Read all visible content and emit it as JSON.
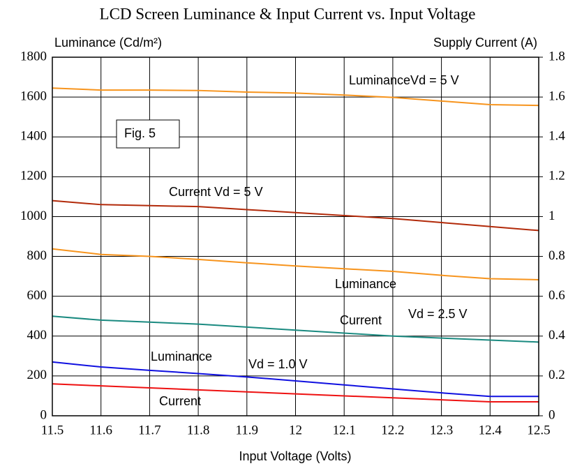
{
  "chart_data": {
    "type": "line",
    "title": "LCD Screen Luminance & Input Current vs. Input Voltage",
    "x_label": "Input Voltage (Volts)",
    "y_label": "Luminance (Cd/m²)",
    "y2_label": "Supply Current (A)",
    "x": [
      11.5,
      11.6,
      11.7,
      11.8,
      11.9,
      12,
      12.1,
      12.2,
      12.3,
      12.4,
      12.5
    ],
    "xlim": [
      11.5,
      12.5
    ],
    "xticks": [
      11.5,
      11.6,
      11.7,
      11.8,
      11.9,
      12,
      12.1,
      12.2,
      12.3,
      12.4,
      12.5
    ],
    "ylim": [
      0,
      1800
    ],
    "yticks": [
      0,
      200,
      400,
      600,
      800,
      1000,
      1200,
      1400,
      1600,
      1800
    ],
    "y2lim": [
      0,
      1.8
    ],
    "y2ticks": [
      0,
      0.2,
      0.4,
      0.6,
      0.8,
      1,
      1.2,
      1.4,
      1.6,
      1.8
    ],
    "grid": true,
    "annotations": [
      "LuminanceVd = 5 V",
      "Current Vd = 5 V",
      "Luminance",
      "Vd = 2.5 V",
      "Current",
      "Luminance",
      "Vd = 1.0 V",
      "Current",
      "Fig. 5"
    ],
    "series": [
      {
        "color": "#f7941d",
        "values": [
          1645,
          1635,
          1635,
          1633,
          1625,
          1620,
          1610,
          1598,
          1580,
          1562,
          1558
        ]
      },
      {
        "color": "#b22a0a",
        "axis": "y2",
        "values": [
          1.08,
          1.06,
          1.055,
          1.05,
          1.035,
          1.02,
          1.005,
          0.99,
          0.97,
          0.95,
          0.93
        ]
      },
      {
        "color": "#f7941d",
        "values": [
          838,
          810,
          800,
          785,
          768,
          752,
          738,
          725,
          705,
          688,
          683
        ]
      },
      {
        "color": "#1a8a80",
        "axis": "y2",
        "values": [
          0.5,
          0.48,
          0.47,
          0.46,
          0.445,
          0.43,
          0.415,
          0.4,
          0.39,
          0.38,
          0.37
        ]
      },
      {
        "color": "#1010e0",
        "values": [
          270,
          245,
          228,
          212,
          195,
          175,
          155,
          135,
          115,
          97,
          97
        ]
      },
      {
        "color": "#ee1111",
        "axis": "y2",
        "values": [
          0.16,
          0.15,
          0.14,
          0.13,
          0.12,
          0.11,
          0.1,
          0.09,
          0.08,
          0.07,
          0.07
        ]
      }
    ]
  }
}
